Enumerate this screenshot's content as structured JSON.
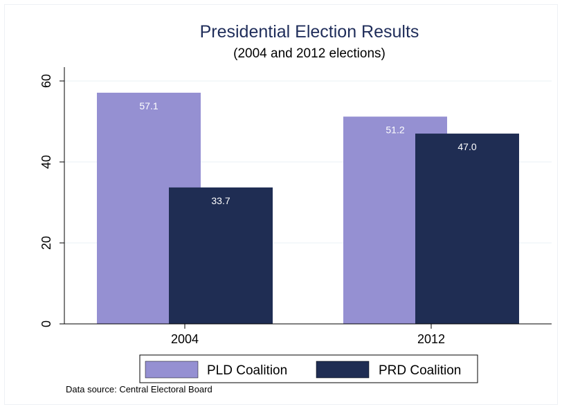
{
  "chart_data": {
    "type": "bar",
    "title": "Presidential Election Results",
    "subtitle": "(2004 and 2012 elections)",
    "categories": [
      "2004",
      "2012"
    ],
    "series": [
      {
        "name": "PLD Coalition",
        "values": [
          57.1,
          51.2
        ],
        "labels": [
          "57.1",
          "51.2"
        ],
        "color": "#9590d2"
      },
      {
        "name": "PRD Coalition",
        "values": [
          33.7,
          47.0
        ],
        "labels": [
          "33.7",
          "47.0"
        ],
        "color": "#1f2d53"
      }
    ],
    "ylim": [
      0,
      60
    ],
    "yticks": [
      0,
      20,
      40,
      60
    ],
    "ytick_labels": [
      "0",
      "20",
      "40",
      "60"
    ],
    "grid": true,
    "legend": "bottom",
    "note": "Data source: Central Electoral Board"
  }
}
